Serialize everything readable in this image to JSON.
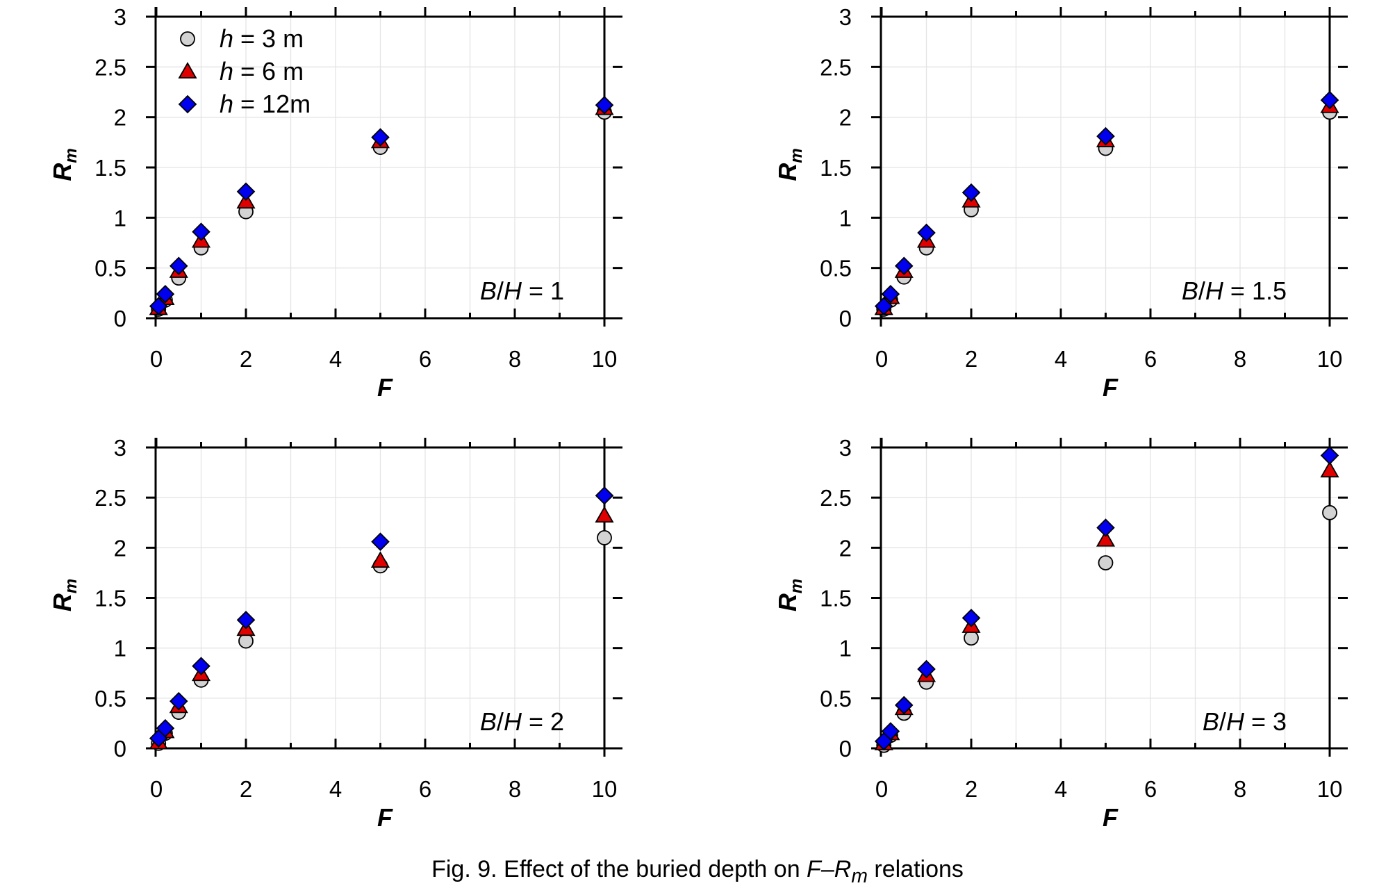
{
  "figure": {
    "caption": {
      "prefix": "Fig. 9. Effect of the buried depth on ",
      "relation_f": "F",
      "dash": "–",
      "relation_r": "R",
      "relation_sub": "m",
      "suffix": " relations"
    },
    "colors": {
      "h3": "#d3d3d3",
      "h6": "#e00000",
      "h12": "#0000ee",
      "grid": "#e4e4e4",
      "axis": "#000000"
    }
  },
  "chart_data": [
    {
      "type": "scatter",
      "panel_label": "B/H = 1",
      "label_parts": {
        "b": "B",
        "slash": "/",
        "h": "H",
        "rest": " = 1"
      },
      "xlabel": "F",
      "ylabel": "R",
      "ylabel_sub": "m",
      "xlim": [
        0,
        10
      ],
      "ylim": [
        0,
        3
      ],
      "xticks": [
        "0",
        "2",
        "4",
        "6",
        "8",
        "10"
      ],
      "yticks": [
        "0",
        "0.5",
        "1",
        "1.5",
        "2",
        "2.5",
        "3"
      ],
      "grid": true,
      "legend_position": "top-left",
      "series": [
        {
          "name": "h = 3 m",
          "name_h": "h",
          "name_rest": " = 3 m",
          "marker": "circle",
          "color_key": "h3",
          "x": [
            0.05,
            0.2,
            0.5,
            1,
            2,
            5,
            10
          ],
          "y": [
            0.09,
            0.18,
            0.4,
            0.7,
            1.06,
            1.7,
            2.05
          ]
        },
        {
          "name": "h = 6 m",
          "name_h": "h",
          "name_rest": " = 6 m",
          "marker": "triangle",
          "color_key": "h6",
          "x": [
            0.05,
            0.2,
            0.5,
            1,
            2,
            5,
            10
          ],
          "y": [
            0.1,
            0.2,
            0.47,
            0.77,
            1.16,
            1.76,
            2.09
          ]
        },
        {
          "name": "h = 12m",
          "name_h": "h",
          "name_rest": " = 12m",
          "marker": "diamond",
          "color_key": "h12",
          "x": [
            0.05,
            0.2,
            0.5,
            1,
            2,
            5,
            10
          ],
          "y": [
            0.12,
            0.24,
            0.52,
            0.86,
            1.26,
            1.8,
            2.12
          ]
        }
      ]
    },
    {
      "type": "scatter",
      "panel_label": "B/H = 1.5",
      "label_parts": {
        "b": "B",
        "slash": "/",
        "h": "H",
        "rest": " = 1.5"
      },
      "xlabel": "F",
      "ylabel": "R",
      "ylabel_sub": "m",
      "xlim": [
        0,
        10
      ],
      "ylim": [
        0,
        3
      ],
      "xticks": [
        "0",
        "2",
        "4",
        "6",
        "8",
        "10"
      ],
      "yticks": [
        "0",
        "0.5",
        "1",
        "1.5",
        "2",
        "2.5",
        "3"
      ],
      "grid": true,
      "series": [
        {
          "name": "h = 3 m",
          "marker": "circle",
          "color_key": "h3",
          "x": [
            0.05,
            0.2,
            0.5,
            1,
            2,
            5,
            10
          ],
          "y": [
            0.09,
            0.18,
            0.41,
            0.7,
            1.08,
            1.69,
            2.05
          ]
        },
        {
          "name": "h = 6 m",
          "marker": "triangle",
          "color_key": "h6",
          "x": [
            0.05,
            0.2,
            0.5,
            1,
            2,
            5,
            10
          ],
          "y": [
            0.1,
            0.21,
            0.47,
            0.77,
            1.17,
            1.77,
            2.11
          ]
        },
        {
          "name": "h = 12m",
          "marker": "diamond",
          "color_key": "h12",
          "x": [
            0.05,
            0.2,
            0.5,
            1,
            2,
            5,
            10
          ],
          "y": [
            0.12,
            0.24,
            0.52,
            0.85,
            1.25,
            1.81,
            2.17
          ]
        }
      ]
    },
    {
      "type": "scatter",
      "panel_label": "B/H = 2",
      "label_parts": {
        "b": "B",
        "slash": "/",
        "h": "H",
        "rest": " = 2"
      },
      "xlabel": "F",
      "ylabel": "R",
      "ylabel_sub": "m",
      "xlim": [
        0,
        10
      ],
      "ylim": [
        0,
        3
      ],
      "xticks": [
        "0",
        "2",
        "4",
        "6",
        "8",
        "10"
      ],
      "yticks": [
        "0",
        "0.5",
        "1",
        "1.5",
        "2",
        "2.5",
        "3"
      ],
      "grid": true,
      "series": [
        {
          "name": "h = 3 m",
          "marker": "circle",
          "color_key": "h3",
          "x": [
            0.05,
            0.2,
            0.5,
            1,
            2,
            5,
            10
          ],
          "y": [
            0.05,
            0.15,
            0.36,
            0.68,
            1.07,
            1.82,
            2.1
          ]
        },
        {
          "name": "h = 6 m",
          "marker": "triangle",
          "color_key": "h6",
          "x": [
            0.05,
            0.2,
            0.5,
            1,
            2,
            5,
            10
          ],
          "y": [
            0.06,
            0.17,
            0.42,
            0.74,
            1.19,
            1.87,
            2.32
          ]
        },
        {
          "name": "h = 12m",
          "marker": "diamond",
          "color_key": "h12",
          "x": [
            0.05,
            0.2,
            0.5,
            1,
            2,
            5,
            10
          ],
          "y": [
            0.1,
            0.2,
            0.47,
            0.82,
            1.28,
            2.06,
            2.52
          ]
        }
      ]
    },
    {
      "type": "scatter",
      "panel_label": "B/H = 3",
      "label_parts": {
        "b": "B",
        "slash": "/",
        "h": "H",
        "rest": " = 3"
      },
      "xlabel": "F",
      "ylabel": "R",
      "ylabel_sub": "m",
      "xlim": [
        0,
        10
      ],
      "ylim": [
        0,
        3
      ],
      "xticks": [
        "0",
        "2",
        "4",
        "6",
        "8",
        "10"
      ],
      "yticks": [
        "0",
        "0.5",
        "1",
        "1.5",
        "2",
        "2.5",
        "3"
      ],
      "grid": true,
      "series": [
        {
          "name": "h = 3 m",
          "marker": "circle",
          "color_key": "h3",
          "x": [
            0.05,
            0.2,
            0.5,
            1,
            2,
            5,
            10
          ],
          "y": [
            0.03,
            0.13,
            0.35,
            0.66,
            1.1,
            1.85,
            2.35
          ]
        },
        {
          "name": "h = 6 m",
          "marker": "triangle",
          "color_key": "h6",
          "x": [
            0.05,
            0.2,
            0.5,
            1,
            2,
            5,
            10
          ],
          "y": [
            0.05,
            0.15,
            0.4,
            0.73,
            1.22,
            2.08,
            2.77
          ]
        },
        {
          "name": "h = 12m",
          "marker": "diamond",
          "color_key": "h12",
          "x": [
            0.05,
            0.2,
            0.5,
            1,
            2,
            5,
            10
          ],
          "y": [
            0.07,
            0.17,
            0.43,
            0.79,
            1.3,
            2.2,
            2.92
          ]
        }
      ]
    }
  ]
}
